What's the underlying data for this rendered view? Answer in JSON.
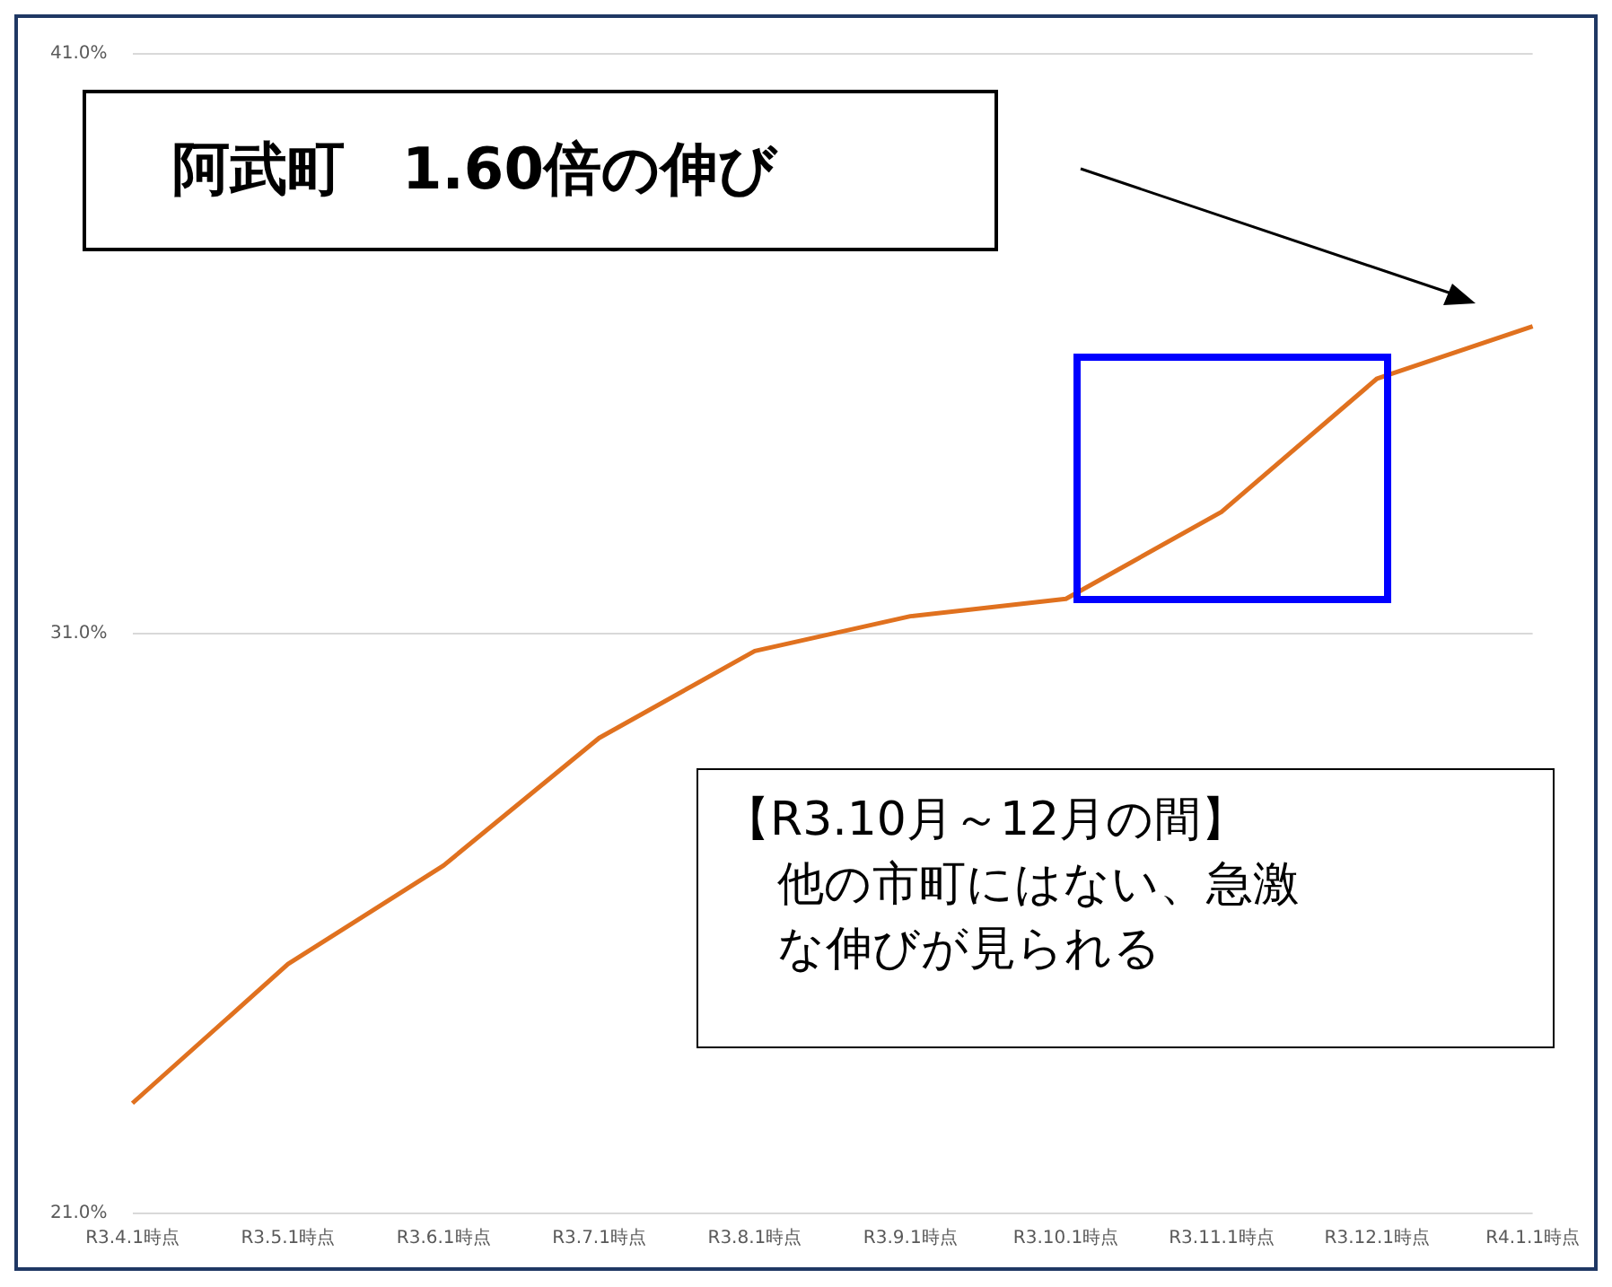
{
  "chart_data": {
    "type": "line",
    "title": "阿武町　1.60倍の伸び",
    "categories": [
      "R3.4.1時点",
      "R3.5.1時点",
      "R3.6.1時点",
      "R3.7.1時点",
      "R3.8.1時点",
      "R3.9.1時点",
      "R3.10.1時点",
      "R3.11.1時点",
      "R3.12.1時点",
      "R4.1.1時点"
    ],
    "values": [
      22.9,
      25.3,
      27.0,
      29.2,
      30.7,
      31.3,
      31.6,
      33.1,
      35.4,
      36.3
    ],
    "color": "#e0711f",
    "ylim": [
      21,
      41
    ],
    "yticks": [
      {
        "value": 21,
        "label": "21.0%"
      },
      {
        "value": 31,
        "label": "31.0%"
      },
      {
        "value": 41,
        "label": "41.0%"
      }
    ],
    "grid": "y",
    "marker": "none",
    "line_style": "solid",
    "annotations": [
      "【R3.10月～12月の間】",
      "他の市町にはない、急激な伸びが見られる"
    ]
  }
}
